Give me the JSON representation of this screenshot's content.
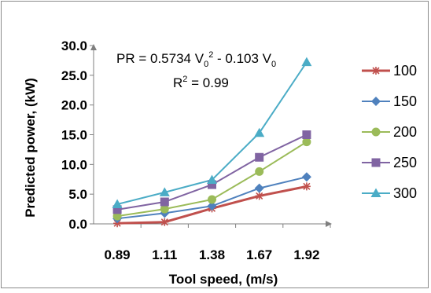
{
  "chart_data": {
    "type": "line",
    "title": "",
    "xlabel": "Tool speed, (m/s)",
    "ylabel": "Predicted power, (kW)",
    "categories": [
      "0.89",
      "1.11",
      "1.38",
      "1.67",
      "1.92"
    ],
    "ylim": [
      0,
      30
    ],
    "yticks": [
      "0.0",
      "5.0",
      "10.0",
      "15.0",
      "20.0",
      "25.0",
      "30.0"
    ],
    "grid": false,
    "legend_position": "right",
    "annotation": {
      "equation_left": "PR = 0.5734 V",
      "equation_sub1": "0",
      "equation_sup1": "2",
      "equation_right": " - 0.103 V",
      "equation_sub2": "0",
      "r2_prefix": "R",
      "r2_sup": "2",
      "r2_value": " = 0.99"
    },
    "series": [
      {
        "name": "100",
        "color": "#c0504d",
        "marker": "asterisk",
        "values": [
          0.1,
          0.3,
          2.6,
          4.7,
          6.3
        ]
      },
      {
        "name": "150",
        "color": "#4f81bd",
        "marker": "diamond",
        "values": [
          0.9,
          1.8,
          3.0,
          6.0,
          7.9
        ]
      },
      {
        "name": "200",
        "color": "#9bbb59",
        "marker": "circle",
        "values": [
          1.3,
          2.5,
          4.1,
          8.8,
          13.8
        ]
      },
      {
        "name": "250",
        "color": "#8064a2",
        "marker": "square",
        "values": [
          2.4,
          3.7,
          6.6,
          11.2,
          15.0
        ]
      },
      {
        "name": "300",
        "color": "#4bacc6",
        "marker": "triangle",
        "values": [
          3.3,
          5.3,
          7.4,
          15.3,
          27.2
        ]
      }
    ]
  }
}
